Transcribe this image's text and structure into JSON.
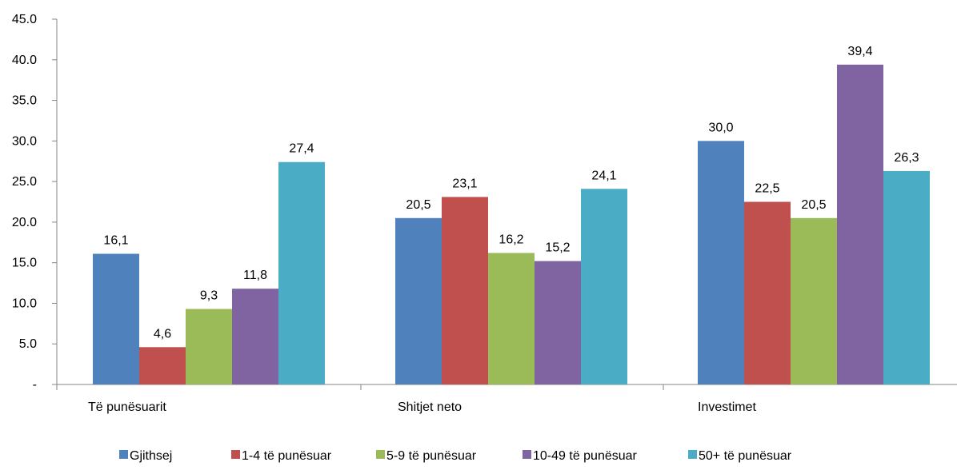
{
  "chart_data": {
    "type": "bar",
    "categories": [
      "Të  punësuarit",
      "Shitjet neto",
      "Investimet"
    ],
    "series": [
      {
        "name": "Gjithsej",
        "color": "#4F81BD",
        "values": [
          16.1,
          20.5,
          30.0
        ],
        "labels": [
          "16,1",
          "20,5",
          "30,0"
        ]
      },
      {
        "name": "1-4 të punësuar",
        "color": "#C0504D",
        "values": [
          4.6,
          23.1,
          22.5
        ],
        "labels": [
          "4,6",
          "23,1",
          "22,5"
        ]
      },
      {
        "name": "5-9 të punësuar",
        "color": "#9BBB59",
        "values": [
          9.3,
          16.2,
          20.5
        ],
        "labels": [
          "9,3",
          "16,2",
          "20,5"
        ]
      },
      {
        "name": "10-49 të punësuar",
        "color": "#8064A2",
        "values": [
          11.8,
          15.2,
          39.4
        ],
        "labels": [
          "11,8",
          "15,2",
          "39,4"
        ]
      },
      {
        "name": "50+ të punësuar",
        "color": "#4BACC6",
        "values": [
          27.4,
          24.1,
          26.3
        ],
        "labels": [
          "27,4",
          "24,1",
          "26,3"
        ]
      }
    ],
    "ylim": [
      0,
      45
    ],
    "yticks": [
      0,
      5,
      10,
      15,
      20,
      25,
      30,
      35,
      40,
      45
    ],
    "ytick_labels": [
      "-",
      "5.0",
      "10.0",
      "15.0",
      "20.0",
      "25.0",
      "30.0",
      "35.0",
      "40.0",
      "45.0"
    ],
    "grid": false,
    "legend_position": "bottom",
    "title": "",
    "xlabel": "",
    "ylabel": ""
  }
}
